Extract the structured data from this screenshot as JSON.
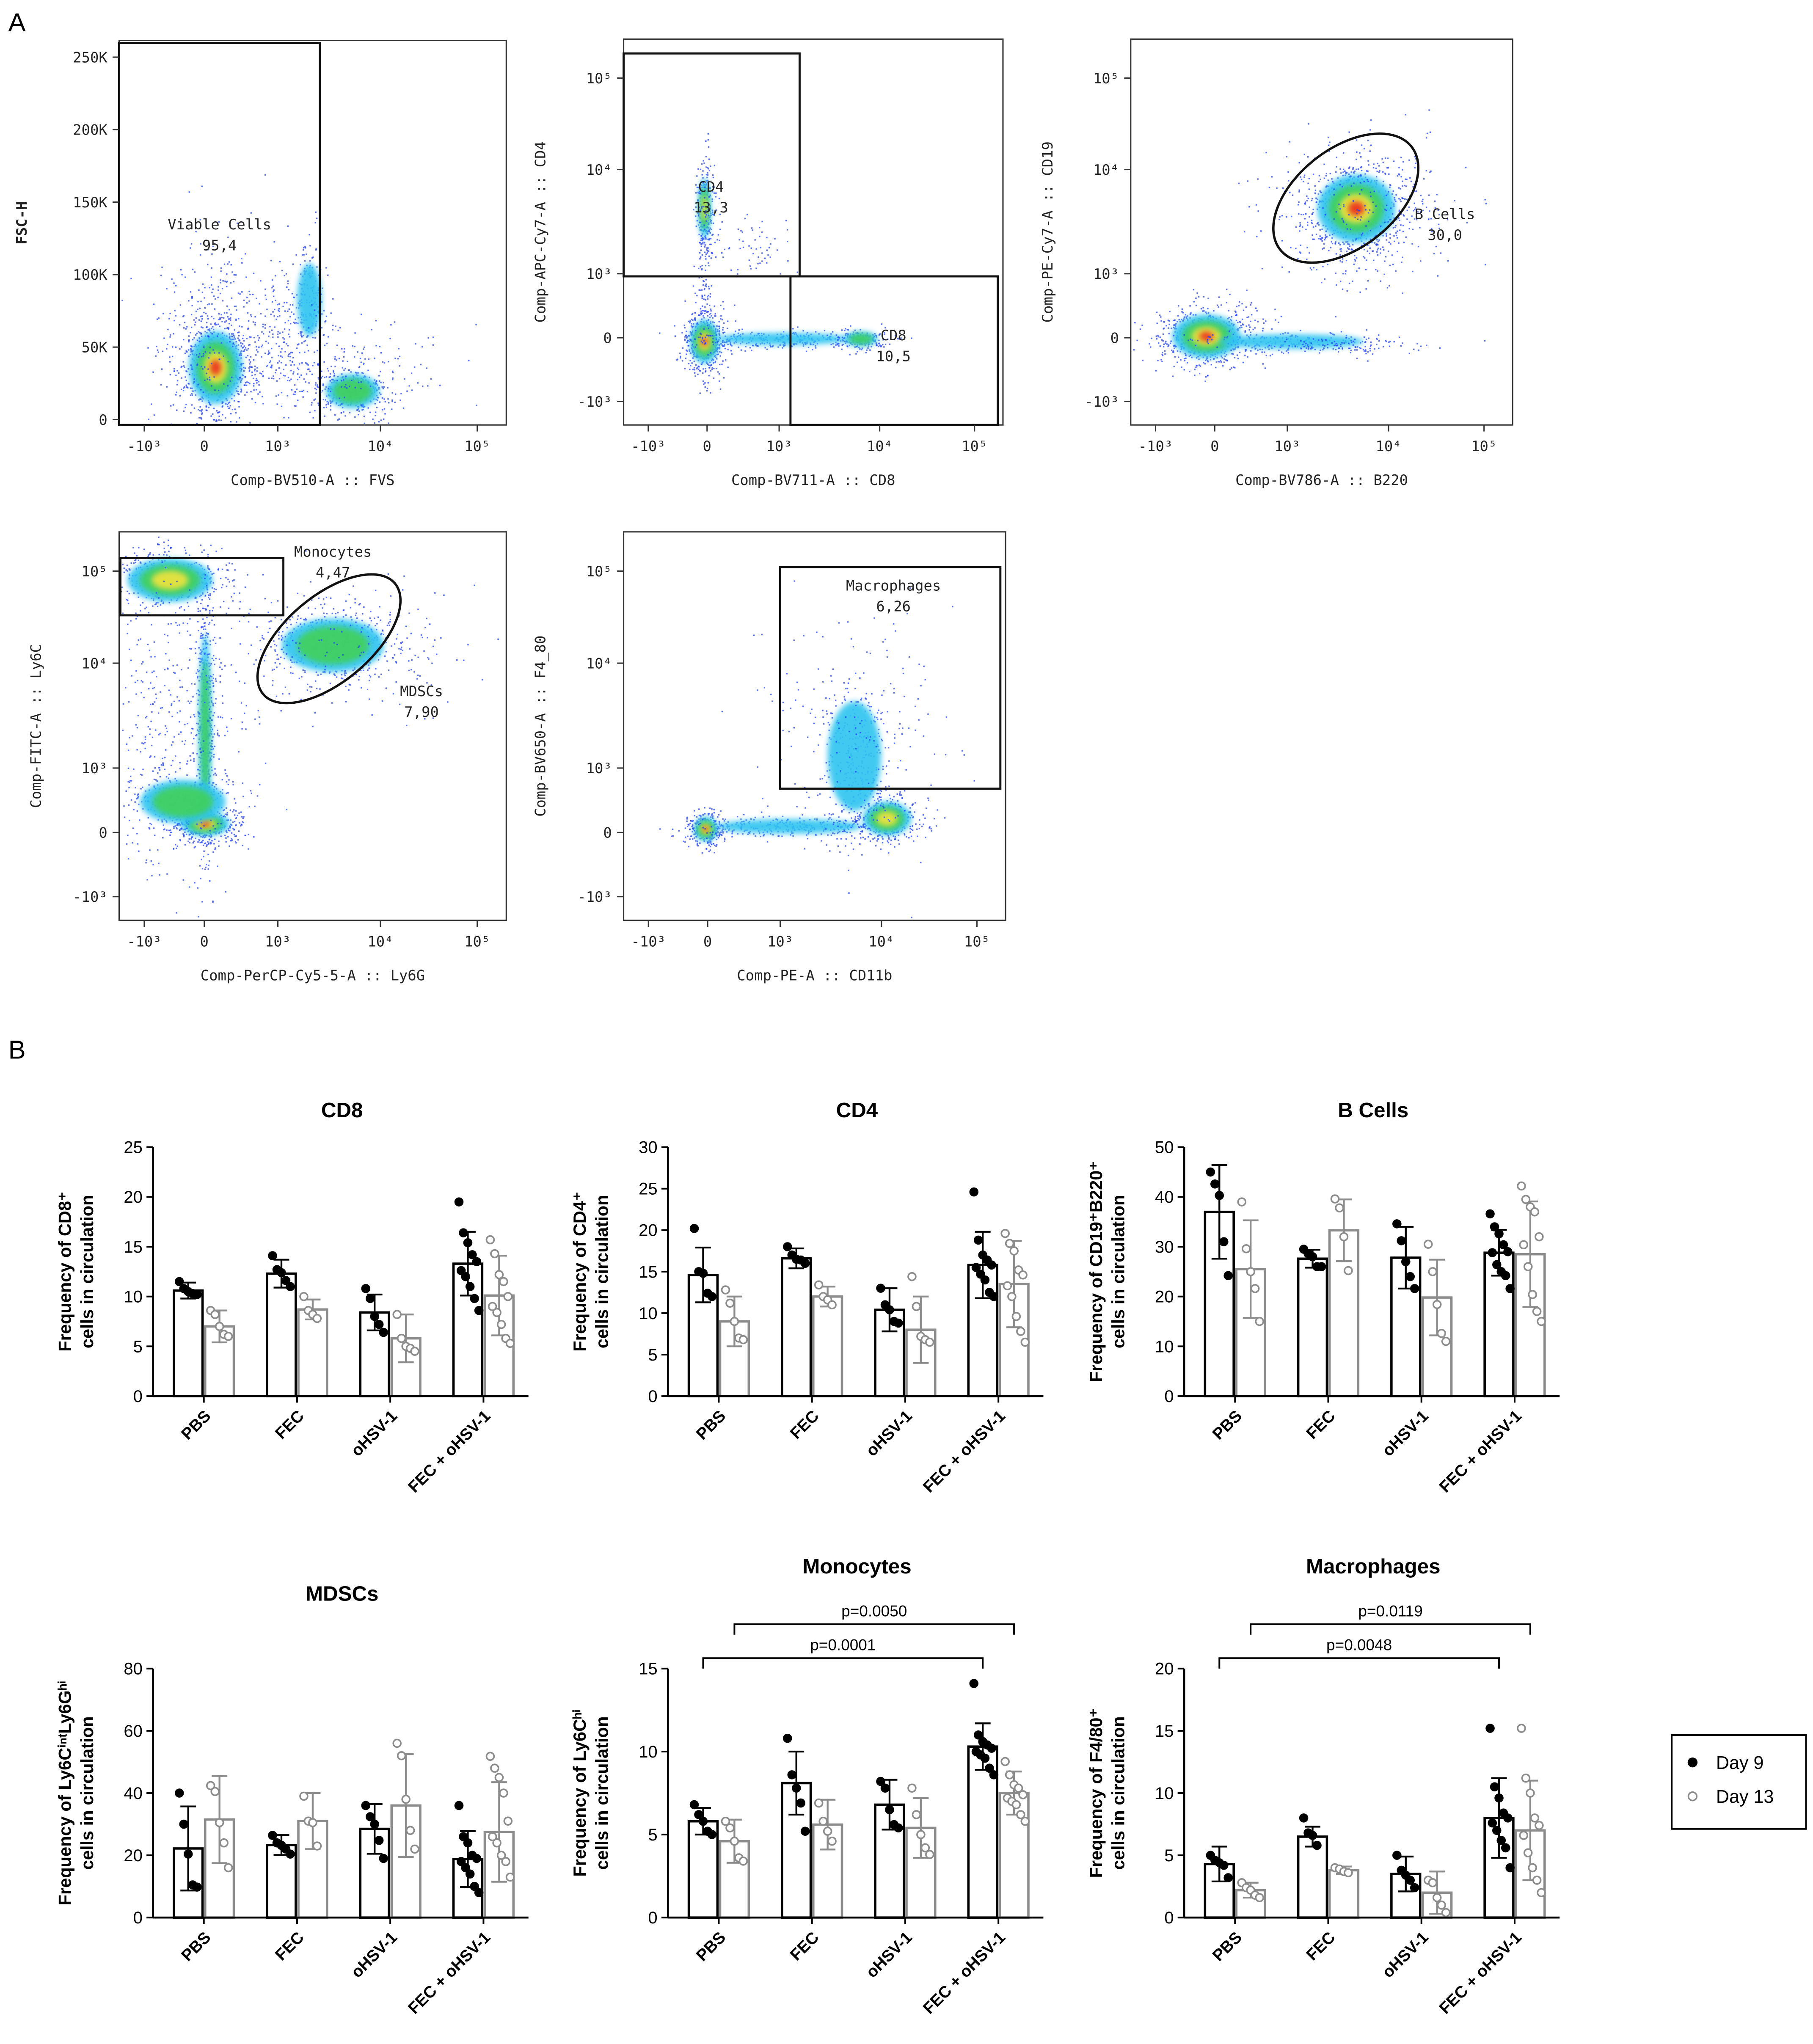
{
  "panel_labels": [
    "A",
    "B"
  ],
  "flow_plots": [
    {
      "x_label": "Comp-BV510-A :: FVS",
      "y_label": "FSC-H",
      "xticks": [
        "-10³",
        "0",
        "10³",
        "10⁴",
        "10⁵"
      ],
      "yticks": [
        "0",
        "50K",
        "100K",
        "150K",
        "200K",
        "250K"
      ],
      "gates": [
        {
          "name": "Viable Cells",
          "value": "95,4"
        }
      ]
    },
    {
      "x_label": "Comp-BV711-A :: CD8",
      "y_label": "Comp-APC-Cy7-A :: CD4",
      "xticks": [
        "-10³",
        "0",
        "10³",
        "10⁴",
        "10⁵"
      ],
      "yticks": [
        "-10³",
        "0",
        "10³",
        "10⁴",
        "10⁵"
      ],
      "gates": [
        {
          "name": "CD4",
          "value": "13,3"
        },
        {
          "name": "CD8",
          "value": "10,5"
        }
      ]
    },
    {
      "x_label": "Comp-BV786-A :: B220",
      "y_label": "Comp-PE-Cy7-A :: CD19",
      "xticks": [
        "-10³",
        "0",
        "10³",
        "10⁴",
        "10⁵"
      ],
      "yticks": [
        "-10³",
        "0",
        "10³",
        "10⁴",
        "10⁵"
      ],
      "gates": [
        {
          "name": "B Cells",
          "value": "30,0"
        }
      ]
    },
    {
      "x_label": "Comp-PerCP-Cy5-5-A :: Ly6G",
      "y_label": "Comp-FITC-A :: Ly6C",
      "xticks": [
        "-10³",
        "0",
        "10³",
        "10⁴",
        "10⁵"
      ],
      "yticks": [
        "-10³",
        "0",
        "10³",
        "10⁴",
        "10⁵"
      ],
      "gates": [
        {
          "name": "Monocytes",
          "value": "4,47"
        },
        {
          "name": "MDSCs",
          "value": "7,90"
        }
      ]
    },
    {
      "x_label": "Comp-PE-A :: CD11b",
      "y_label": "Comp-BV650-A :: F4_80",
      "xticks": [
        "-10³",
        "0",
        "10³",
        "10⁴",
        "10⁵"
      ],
      "yticks": [
        "-10³",
        "0",
        "10³",
        "10⁴",
        "10⁵"
      ],
      "gates": [
        {
          "name": "Macrophages",
          "value": "6,26"
        }
      ]
    }
  ],
  "chart_data": [
    {
      "type": "bar",
      "title": "CD8",
      "y_label": [
        "Frequency of CD8⁺",
        "cells in circulation"
      ],
      "categories": [
        "PBS",
        "FEC",
        "oHSV-1",
        "FEC + oHSV-1"
      ],
      "ylim": [
        0,
        25
      ],
      "yticks": [
        0,
        5,
        10,
        15,
        20,
        25
      ],
      "series": [
        {
          "name": "Day 9",
          "color": "#000000",
          "values": [
            10.6,
            12.3,
            8.4,
            13.3
          ],
          "errors": [
            0.8,
            1.4,
            1.8,
            3.2
          ],
          "points": [
            [
              11.5,
              10.8,
              10.5,
              10.3,
              10.2
            ],
            [
              14.1,
              12.7,
              12.4,
              11.6,
              11.0
            ],
            [
              10.8,
              9.8,
              8.0,
              7.2,
              6.4
            ],
            [
              19.5,
              16.4,
              15.4,
              14.2,
              13.5,
              12.6,
              12.0,
              11.0,
              9.8,
              8.6
            ]
          ]
        },
        {
          "name": "Day 13",
          "color": "#8c8c8c",
          "values": [
            7.0,
            8.7,
            5.8,
            10.1
          ],
          "errors": [
            1.6,
            1.0,
            2.4,
            4.0
          ],
          "points": [
            [
              8.6,
              8.2,
              7.0,
              6.2,
              6.0
            ],
            [
              10.0,
              8.6,
              8.2,
              7.8
            ],
            [
              8.2,
              5.8,
              5.0,
              4.8,
              4.5
            ],
            [
              15.7,
              14.3,
              12.2,
              11.5,
              10.0,
              9.0,
              8.4,
              7.2,
              5.8,
              5.3
            ]
          ]
        }
      ]
    },
    {
      "type": "bar",
      "title": "CD4",
      "y_label": [
        "Frequency of CD4⁺",
        "cells in circulation"
      ],
      "categories": [
        "PBS",
        "FEC",
        "oHSV-1",
        "FEC + oHSV-1"
      ],
      "ylim": [
        0,
        30
      ],
      "yticks": [
        0,
        5,
        10,
        15,
        20,
        25,
        30
      ],
      "series": [
        {
          "name": "Day 9",
          "color": "#000000",
          "values": [
            14.6,
            16.6,
            10.4,
            15.8
          ],
          "errors": [
            3.3,
            1.2,
            2.6,
            4.0
          ],
          "points": [
            [
              20.2,
              15.0,
              14.8,
              12.4,
              12.0
            ],
            [
              18.0,
              17.0,
              16.5,
              16.4,
              16.0
            ],
            [
              13.0,
              11.0,
              10.4,
              9.0,
              8.8
            ],
            [
              24.6,
              18.8,
              17.0,
              16.4,
              15.8,
              15.5,
              14.7,
              14.0,
              12.5,
              12.0
            ]
          ]
        },
        {
          "name": "Day 13",
          "color": "#8c8c8c",
          "values": [
            9.0,
            12.0,
            8.0,
            13.5
          ],
          "errors": [
            3.0,
            1.2,
            4.0,
            5.2
          ],
          "points": [
            [
              12.8,
              11.2,
              9.0,
              7.0,
              6.8
            ],
            [
              13.4,
              12.0,
              11.6,
              11.0
            ],
            [
              14.4,
              10.8,
              7.2,
              6.8,
              6.5
            ],
            [
              19.6,
              18.4,
              17.5,
              15.2,
              14.6,
              13.3,
              12.0,
              9.6,
              7.8,
              6.5
            ]
          ]
        }
      ]
    },
    {
      "type": "bar",
      "title": "B Cells",
      "y_label": [
        "Frequency of CD19⁺B220⁺",
        "cells in circulation"
      ],
      "categories": [
        "PBS",
        "FEC",
        "oHSV-1",
        "FEC + oHSV-1"
      ],
      "ylim": [
        0,
        50
      ],
      "yticks": [
        0,
        10,
        20,
        30,
        40,
        50
      ],
      "series": [
        {
          "name": "Day 9",
          "color": "#000000",
          "values": [
            37.0,
            27.6,
            27.8,
            28.8
          ],
          "errors": [
            9.4,
            1.8,
            6.2,
            4.6
          ],
          "points": [
            [
              45.0,
              42.6,
              40.3,
              31.0,
              24.2
            ],
            [
              29.5,
              28.6,
              28.0,
              26.0,
              26.0
            ],
            [
              34.6,
              31.2,
              27.0,
              24.0,
              21.6
            ],
            [
              36.6,
              34.0,
              32.6,
              30.4,
              29.0,
              28.8,
              26.4,
              25.0,
              24.2,
              21.6
            ]
          ]
        },
        {
          "name": "Day 13",
          "color": "#8c8c8c",
          "values": [
            25.5,
            33.3,
            19.8,
            28.5
          ],
          "errors": [
            9.8,
            6.2,
            7.6,
            10.6
          ],
          "points": [
            [
              39.0,
              29.6,
              25.0,
              21.6,
              15.0
            ],
            [
              39.6,
              37.8,
              32.0,
              25.2
            ],
            [
              30.5,
              25.0,
              18.4,
              12.6,
              11.0
            ],
            [
              42.2,
              39.5,
              38.0,
              37.0,
              32.0,
              30.4,
              26.0,
              20.4,
              17.0,
              15.0
            ]
          ]
        }
      ]
    },
    {
      "type": "bar",
      "title": "MDSCs",
      "y_label": [
        "Frequency of Ly6CⁱⁿᵗLy6Gʰⁱ",
        "cells in circulation"
      ],
      "categories": [
        "PBS",
        "FEC",
        "oHSV-1",
        "FEC + oHSV-1"
      ],
      "ylim": [
        0,
        80
      ],
      "yticks": [
        0,
        20,
        40,
        60,
        80
      ],
      "series": [
        {
          "name": "Day 9",
          "color": "#000000",
          "values": [
            22.2,
            23.3,
            28.5,
            18.8
          ],
          "errors": [
            13.5,
            3.2,
            8.0,
            9.0
          ],
          "points": [
            [
              40.0,
              30.0,
              20.4,
              10.5,
              9.8
            ],
            [
              26.4,
              24.0,
              23.2,
              22.0,
              20.4
            ],
            [
              36.0,
              32.4,
              30.0,
              24.8,
              19.0
            ],
            [
              36.0,
              26.0,
              24.0,
              20.0,
              19.0,
              18.0,
              16.0,
              14.0,
              10.0,
              8.0
            ]
          ]
        },
        {
          "name": "Day 13",
          "color": "#8c8c8c",
          "values": [
            31.5,
            31.0,
            36.0,
            27.5
          ],
          "errors": [
            14.0,
            9.0,
            16.5,
            16.0
          ],
          "points": [
            [
              42.4,
              40.5,
              30.5,
              24.0,
              16.0
            ],
            [
              39.0,
              31.0,
              30.5,
              23.0
            ],
            [
              56.0,
              52.0,
              38.0,
              28.0,
              22.0
            ],
            [
              51.8,
              48.0,
              45.0,
              40.0,
              31.0,
              26.0,
              24.0,
              20.0,
              18.0,
              13.0
            ]
          ]
        }
      ]
    },
    {
      "type": "bar",
      "title": "Monocytes",
      "y_label": [
        "Frequency of Ly6Cʰⁱ",
        "cells in circulation"
      ],
      "categories": [
        "PBS",
        "FEC",
        "oHSV-1",
        "FEC + oHSV-1"
      ],
      "ylim": [
        0,
        15
      ],
      "yticks": [
        0,
        5,
        10,
        15
      ],
      "series": [
        {
          "name": "Day 9",
          "color": "#000000",
          "values": [
            5.8,
            8.1,
            6.8,
            10.3
          ],
          "errors": [
            0.8,
            1.9,
            1.5,
            1.4
          ],
          "points": [
            [
              6.8,
              6.2,
              5.8,
              5.2,
              5.0
            ],
            [
              10.8,
              8.6,
              7.8,
              6.9,
              5.2
            ],
            [
              8.2,
              7.8,
              6.5,
              5.6,
              5.4
            ],
            [
              14.1,
              11.0,
              10.6,
              10.4,
              10.2,
              10.0,
              9.8,
              9.6,
              9.0,
              8.6
            ]
          ]
        },
        {
          "name": "Day 13",
          "color": "#8c8c8c",
          "values": [
            4.6,
            5.6,
            5.4,
            7.5
          ],
          "errors": [
            1.3,
            1.5,
            1.8,
            1.3
          ],
          "points": [
            [
              5.8,
              5.4,
              4.6,
              3.6,
              3.4
            ],
            [
              6.9,
              5.8,
              5.2,
              4.6
            ],
            [
              7.8,
              6.2,
              5.0,
              4.2,
              3.8
            ],
            [
              9.4,
              8.6,
              8.0,
              7.8,
              7.4,
              7.2,
              7.0,
              6.8,
              6.2,
              5.8
            ]
          ]
        }
      ],
      "annotations": [
        "p=0.0050",
        "p=0.0001"
      ]
    },
    {
      "type": "bar",
      "title": "Macrophages",
      "y_label": [
        "Frequency of F4/80⁺",
        "cells in circulation"
      ],
      "categories": [
        "PBS",
        "FEC",
        "oHSV-1",
        "FEC + oHSV-1"
      ],
      "ylim": [
        0,
        20
      ],
      "yticks": [
        0,
        5,
        10,
        15,
        20
      ],
      "series": [
        {
          "name": "Day 9",
          "color": "#000000",
          "values": [
            4.3,
            6.5,
            3.5,
            8.0
          ],
          "errors": [
            1.4,
            0.8,
            1.4,
            3.2
          ],
          "points": [
            [
              5.0,
              4.6,
              4.4,
              4.2,
              3.2
            ],
            [
              8.0,
              6.8,
              6.6,
              5.8
            ],
            [
              5.0,
              3.8,
              3.4,
              3.0,
              2.4
            ],
            [
              15.2,
              10.5,
              9.6,
              8.4,
              8.0,
              7.6,
              7.0,
              6.2,
              5.6,
              4.0
            ]
          ]
        },
        {
          "name": "Day 13",
          "color": "#8c8c8c",
          "values": [
            2.2,
            3.8,
            2.0,
            7.0
          ],
          "errors": [
            0.6,
            0.3,
            1.7,
            4.0
          ],
          "points": [
            [
              2.8,
              2.4,
              2.2,
              1.8,
              1.6
            ],
            [
              4.0,
              3.9,
              3.7,
              3.6
            ],
            [
              3.0,
              2.8,
              1.6,
              1.0,
              0.4
            ],
            [
              15.2,
              11.2,
              10.0,
              8.0,
              7.4,
              6.6,
              5.2,
              4.0,
              3.0,
              2.0
            ]
          ]
        }
      ],
      "annotations": [
        "p=0.0119",
        "p=0.0048"
      ]
    }
  ]
}
